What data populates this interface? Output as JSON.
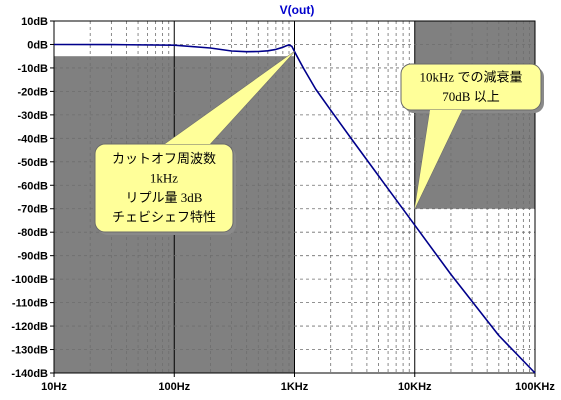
{
  "chart_data": {
    "type": "line",
    "title": "V(out)",
    "xscale": "log",
    "xlim": [
      10,
      100000
    ],
    "ylim": [
      -140,
      10
    ],
    "grid": true,
    "x_ticks": [
      "10Hz",
      "100Hz",
      "1KHz",
      "10KHz",
      "100KHz"
    ],
    "y_ticks": [
      "10dB",
      "0dB",
      "-10dB",
      "-20dB",
      "-30dB",
      "-40dB",
      "-50dB",
      "-60dB",
      "-70dB",
      "-80dB",
      "-90dB",
      "-100dB",
      "-110dB",
      "-120dB",
      "-130dB",
      "-140dB"
    ],
    "series": [
      {
        "color": "#00008b",
        "x": [
          10,
          30,
          100,
          200,
          300,
          400,
          500,
          600,
          700,
          800,
          850,
          900,
          950,
          1000,
          1050,
          1100,
          1200,
          1500,
          2000,
          3000,
          5000,
          10000,
          20000,
          50000,
          100000
        ],
        "y": [
          0,
          -0.05,
          -0.3,
          -1.5,
          -2.8,
          -3.1,
          -3.0,
          -2.7,
          -2.1,
          -1.2,
          -0.6,
          -0.2,
          -0.8,
          -3.0,
          -5.0,
          -7.0,
          -10.5,
          -19,
          -28,
          -40.5,
          -56,
          -77,
          -98,
          -124,
          -143
        ]
      }
    ],
    "shaded_regions": [
      {
        "x": [
          10,
          1000
        ],
        "y": [
          -140,
          -5
        ],
        "color": "#808080"
      },
      {
        "x": [
          10000,
          100000
        ],
        "y": [
          -70,
          10
        ],
        "color": "#808080"
      }
    ],
    "annotations": [
      {
        "lines": [
          "カットオフ周波数",
          "1kHz",
          "リプル量 3dB",
          "チェビシェフ特性"
        ],
        "point": [
          1000,
          -3
        ]
      },
      {
        "lines": [
          "10kHz での減衰量",
          "70dB 以上"
        ],
        "point": [
          10000,
          -70
        ]
      }
    ]
  }
}
